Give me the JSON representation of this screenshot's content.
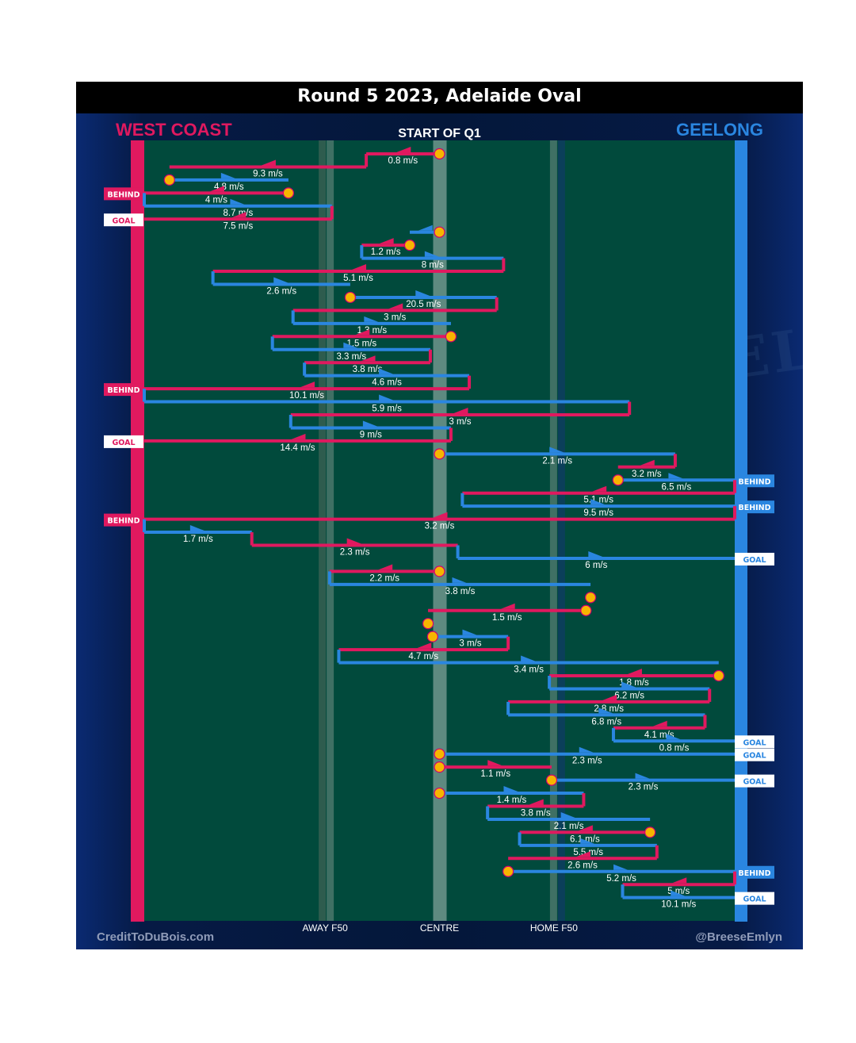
{
  "header": {
    "title": "Round 5 2023, Adelaide Oval",
    "subtitle": "START OF Q1",
    "team_left": "WEST COAST",
    "team_right": "GEELONG"
  },
  "footer": {
    "credit_left": "CreditToDuBois.com",
    "credit_right": "@BreeseEmlyn"
  },
  "watermark": "GEEL",
  "colors": {
    "west_coast": "#e0195f",
    "geelong": "#2a86e0",
    "field": "#014a3c",
    "stoppage_marker": "#f7b500"
  },
  "chart_data": {
    "type": "line",
    "title": "Round 5 2023, Adelaide Oval",
    "subtitle": "START OF Q1",
    "x_axis": {
      "ticks": [
        "AWAY F50",
        "CENTRE",
        "HOME F50"
      ],
      "tick_positions": [
        -50,
        0,
        50
      ]
    },
    "x_range": [
      -129,
      129
    ],
    "x_direction": "West Coast goal on the left, Geelong goal on the right",
    "chains": [
      {
        "team": "west_coast",
        "speed": "0.8 m/s",
        "x1": 0,
        "x2": -32,
        "start": "stoppage"
      },
      {
        "team": "west_coast",
        "speed": "9.3 m/s",
        "x1": -32,
        "x2": -118
      },
      {
        "team": "geelong",
        "speed": "4.8 m/s",
        "x1": -118,
        "x2": -66,
        "start": "stoppage"
      },
      {
        "team": "west_coast",
        "speed": "4 m/s",
        "x1": -66,
        "x2": -129,
        "start": "stoppage",
        "outcome": "BEHIND"
      },
      {
        "team": "geelong",
        "speed": "8.7 m/s",
        "x1": -129,
        "x2": -47
      },
      {
        "team": "west_coast",
        "speed": "7.5 m/s",
        "x1": -47,
        "x2": -129,
        "outcome": "GOAL"
      },
      {
        "team": "geelong",
        "speed": "",
        "x1": 0,
        "x2": -13,
        "start": "stoppage"
      },
      {
        "team": "west_coast",
        "speed": "1.2 m/s",
        "x1": -13,
        "x2": -34,
        "start": "stoppage"
      },
      {
        "team": "geelong",
        "speed": "8 m/s",
        "x1": -34,
        "x2": 28
      },
      {
        "team": "west_coast",
        "speed": "5.1 m/s",
        "x1": 28,
        "x2": -99
      },
      {
        "team": "geelong",
        "speed": "2.6 m/s",
        "x1": -99,
        "x2": -39
      },
      {
        "team": "geelong",
        "speed": "20.5 m/s",
        "x1": -39,
        "x2": 25,
        "start": "stoppage"
      },
      {
        "team": "west_coast",
        "speed": "3 m/s",
        "x1": 25,
        "x2": -64
      },
      {
        "team": "geelong",
        "speed": "1.3 m/s",
        "x1": -64,
        "x2": 5
      },
      {
        "team": "west_coast",
        "speed": "1.5 m/s",
        "x1": 5,
        "x2": -73,
        "start": "stoppage"
      },
      {
        "team": "geelong",
        "speed": "3.3 m/s",
        "x1": -73,
        "x2": -4
      },
      {
        "team": "west_coast",
        "speed": "3.8 m/s",
        "x1": -4,
        "x2": -59
      },
      {
        "team": "geelong",
        "speed": "4.6 m/s",
        "x1": -59,
        "x2": 13
      },
      {
        "team": "west_coast",
        "speed": "10.1 m/s",
        "x1": 13,
        "x2": -129,
        "outcome": "BEHIND"
      },
      {
        "team": "geelong",
        "speed": "5.9 m/s",
        "x1": -129,
        "x2": 83
      },
      {
        "team": "west_coast",
        "speed": "3 m/s",
        "x1": 83,
        "x2": -65
      },
      {
        "team": "geelong",
        "speed": "9 m/s",
        "x1": -65,
        "x2": 5
      },
      {
        "team": "west_coast",
        "speed": "14.4 m/s",
        "x1": 5,
        "x2": -129,
        "outcome": "GOAL"
      },
      {
        "team": "geelong",
        "speed": "2.1 m/s",
        "x1": 0,
        "x2": 103,
        "start": "stoppage"
      },
      {
        "team": "west_coast",
        "speed": "3.2 m/s",
        "x1": 103,
        "x2": 78
      },
      {
        "team": "geelong",
        "speed": "6.5 m/s",
        "x1": 78,
        "x2": 129,
        "start": "stoppage",
        "outcome": "BEHIND"
      },
      {
        "team": "west_coast",
        "speed": "5.1 m/s",
        "x1": 129,
        "x2": 10
      },
      {
        "team": "geelong",
        "speed": "9.5 m/s",
        "x1": 10,
        "x2": 129,
        "outcome": "BEHIND"
      },
      {
        "team": "west_coast",
        "speed": "3.2 m/s",
        "x1": 129,
        "x2": -129,
        "outcome": "BEHIND"
      },
      {
        "team": "geelong",
        "speed": "1.7 m/s",
        "x1": -129,
        "x2": -82
      },
      {
        "team": "west_coast",
        "speed": "2.3 m/s",
        "x1": -82,
        "x2": 8
      },
      {
        "team": "geelong",
        "speed": "6 m/s",
        "x1": 8,
        "x2": 129,
        "outcome": "GOAL"
      },
      {
        "team": "west_coast",
        "speed": "2.2 m/s",
        "x1": 0,
        "x2": -48,
        "start": "stoppage"
      },
      {
        "team": "geelong",
        "speed": "3.8 m/s",
        "x1": -48,
        "x2": 66
      },
      {
        "team": "west_coast",
        "speed": "",
        "x1": 66,
        "x2": 64,
        "start": "stoppage"
      },
      {
        "team": "west_coast",
        "speed": "1.5 m/s",
        "x1": 64,
        "x2": -5,
        "start": "stoppage"
      },
      {
        "team": "geelong",
        "speed": "",
        "x1": -5,
        "x2": -3,
        "start": "stoppage"
      },
      {
        "team": "geelong",
        "speed": "3 m/s",
        "x1": -3,
        "x2": 30,
        "start": "stoppage"
      },
      {
        "team": "west_coast",
        "speed": "4.7 m/s",
        "x1": 30,
        "x2": -44
      },
      {
        "team": "geelong",
        "speed": "3.4 m/s",
        "x1": -44,
        "x2": 122
      },
      {
        "team": "west_coast",
        "speed": "1.8 m/s",
        "x1": 122,
        "x2": 48,
        "start": "stoppage"
      },
      {
        "team": "geelong",
        "speed": "6.2 m/s",
        "x1": 48,
        "x2": 118
      },
      {
        "team": "west_coast",
        "speed": "2.8 m/s",
        "x1": 118,
        "x2": 30
      },
      {
        "team": "geelong",
        "speed": "6.8 m/s",
        "x1": 30,
        "x2": 116
      },
      {
        "team": "west_coast",
        "speed": "4.1 m/s",
        "x1": 116,
        "x2": 76
      },
      {
        "team": "geelong",
        "speed": "0.8 m/s",
        "x1": 76,
        "x2": 129,
        "outcome": "GOAL"
      },
      {
        "team": "geelong",
        "speed": "2.3 m/s",
        "x1": 0,
        "x2": 129,
        "start": "stoppage",
        "outcome": "GOAL"
      },
      {
        "team": "west_coast",
        "speed": "1.1 m/s",
        "x1": 0,
        "x2": 49,
        "start": "stoppage"
      },
      {
        "team": "geelong",
        "speed": "2.3 m/s",
        "x1": 49,
        "x2": 129,
        "start": "stoppage",
        "outcome": "GOAL"
      },
      {
        "team": "geelong",
        "speed": "1.4 m/s",
        "x1": 0,
        "x2": 63,
        "start": "stoppage"
      },
      {
        "team": "west_coast",
        "speed": "3.8 m/s",
        "x1": 63,
        "x2": 21
      },
      {
        "team": "geelong",
        "speed": "2.1 m/s",
        "x1": 21,
        "x2": 92
      },
      {
        "team": "west_coast",
        "speed": "6.1 m/s",
        "x1": 92,
        "x2": 35,
        "start": "stoppage"
      },
      {
        "team": "geelong",
        "speed": "5.5 m/s",
        "x1": 35,
        "x2": 95
      },
      {
        "team": "west_coast",
        "speed": "2.6 m/s",
        "x1": 95,
        "x2": 30
      },
      {
        "team": "geelong",
        "speed": "5.2 m/s",
        "x1": 30,
        "x2": 129,
        "start": "stoppage",
        "outcome": "BEHIND"
      },
      {
        "team": "west_coast",
        "speed": "5 m/s",
        "x1": 129,
        "x2": 80
      },
      {
        "team": "geelong",
        "speed": "10.1 m/s",
        "x1": 80,
        "x2": 129,
        "outcome": "GOAL"
      }
    ]
  }
}
